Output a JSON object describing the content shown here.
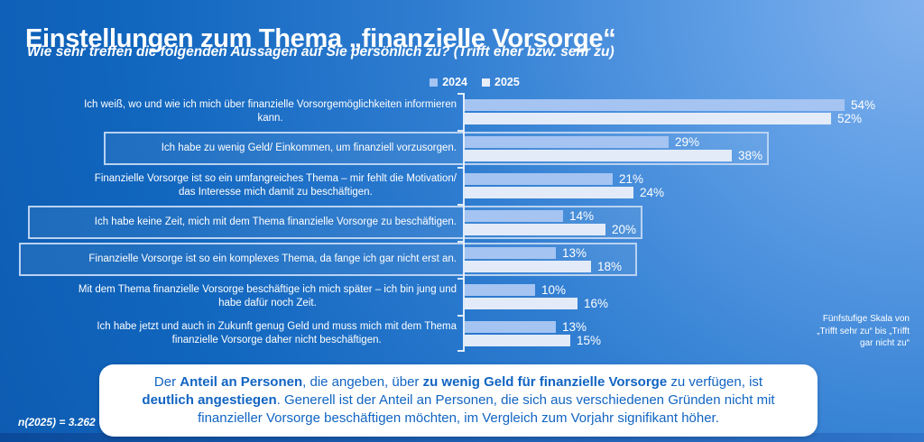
{
  "header": {
    "title": "Einstellungen zum Thema „finanzielle Vorsorge“",
    "subtitle": "Wie sehr treffen die folgenden Aussagen auf Sie persönlich zu? (Trifft eher bzw. sehr zu)"
  },
  "legend": [
    {
      "label": "2024",
      "color": "#a5c4f2"
    },
    {
      "label": "2025",
      "color": "#e8eef9"
    }
  ],
  "chart_data": {
    "type": "bar",
    "orientation": "horizontal",
    "value_suffix": "%",
    "xlim": [
      0,
      60
    ],
    "grid": false,
    "legend_position": "top-center",
    "categories": [
      "Ich weiß, wo und wie ich mich über finanzielle Vorsorgemöglichkeiten informieren\nkann.",
      "Ich habe zu wenig Geld/ Einkommen, um finanziell vorzusorgen.",
      "Finanzielle Vorsorge ist so ein umfangreiches Thema – mir fehlt die Motivation/\ndas Interesse mich damit zu beschäftigen.",
      "Ich habe keine Zeit, mich mit dem Thema finanzielle Vorsorge zu beschäftigen.",
      "Finanzielle Vorsorge ist so ein komplexes Thema, da fange ich gar nicht erst an.",
      "Mit dem Thema finanzielle Vorsorge beschäftige ich mich später – ich bin jung und\nhabe dafür noch Zeit.",
      "Ich habe jetzt und auch in Zukunft genug Geld und muss mich mit dem Thema\nfinanzielle Vorsorge daher nicht beschäftigen."
    ],
    "series": [
      {
        "name": "2024",
        "color": "#a5c4f2",
        "values": [
          54,
          29,
          21,
          14,
          13,
          10,
          13
        ]
      },
      {
        "name": "2025",
        "color": "#e3ebf8",
        "values": [
          52,
          38,
          24,
          20,
          18,
          16,
          15
        ]
      }
    ],
    "highlighted_rows": [
      1,
      3,
      4
    ]
  },
  "scale_note": {
    "lines": [
      "Fünfstufige Skala von",
      "„Trifft sehr zu“ bis „Trifft",
      "gar nicht zu“"
    ]
  },
  "insight_box": {
    "segments": [
      {
        "text": "Der ",
        "bold": false
      },
      {
        "text": "Anteil an Personen",
        "bold": true
      },
      {
        "text": ", die angeben, über ",
        "bold": false
      },
      {
        "text": "zu wenig Geld für finanzielle Vorsorge",
        "bold": true
      },
      {
        "text": " zu verfügen, ist ",
        "bold": false
      },
      {
        "text": "deutlich angestiegen",
        "bold": true
      },
      {
        "text": ". Generell ist der Anteil an Personen, die sich aus verschiedenen Gründen nicht mit finanzieller Vorsorge beschäftigen möchten, im Vergleich zum Vorjahr signifikant höher.",
        "bold": false
      }
    ]
  },
  "sample_note": "n(2025) = 3.262",
  "colors": {
    "background_dark": "#0d5ab0",
    "background_light": "#82b2ee",
    "highlight_border": "#b9d2f1",
    "insight_text": "#1164c2",
    "footer_strip": "#0b4a9b"
  }
}
